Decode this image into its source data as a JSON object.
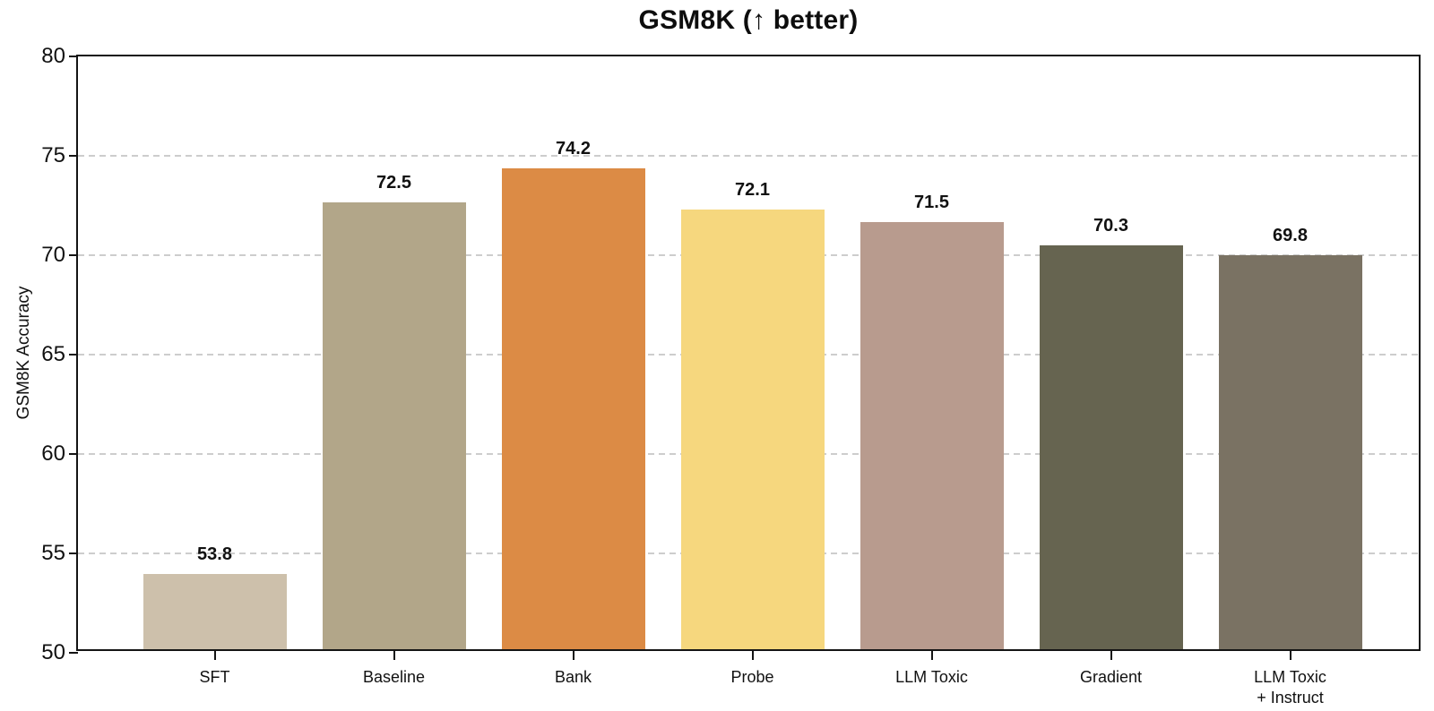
{
  "chart_data": {
    "type": "bar",
    "title": "GSM8K (↑ better)",
    "xlabel": "",
    "ylabel": "GSM8K Accuracy",
    "ylim": [
      50,
      80
    ],
    "yticks": [
      50,
      55,
      60,
      65,
      70,
      75,
      80
    ],
    "grid": "horizontal dashed gridlines at y ticks, full box spines",
    "legend": "none",
    "categories": [
      "SFT",
      "Baseline",
      "Bank",
      "Probe",
      "LLM Toxic",
      "Gradient",
      "LLM Toxic\n+ Instruct"
    ],
    "values": [
      53.8,
      72.5,
      74.2,
      72.1,
      71.5,
      70.3,
      69.8
    ],
    "value_labels": [
      "53.8",
      "72.5",
      "74.2",
      "72.1",
      "71.5",
      "70.3",
      "69.8"
    ],
    "bar_colors": [
      "#cdc0ab",
      "#b2a689",
      "#dc8b45",
      "#f6d77e",
      "#b89b8e",
      "#666450",
      "#7a7263"
    ]
  },
  "colors": {
    "background": "#ffffff",
    "spine": "#141414",
    "gridline": "#cdcdcd",
    "text": "#111111"
  }
}
